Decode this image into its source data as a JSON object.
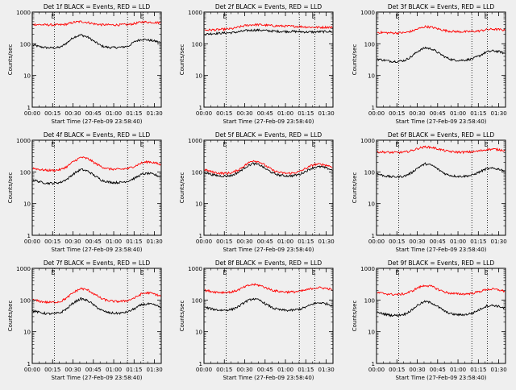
{
  "figure": {
    "background": "#efefef",
    "events_color": "#000000",
    "lld_color": "#ff0000",
    "ylabel": "Counts/sec",
    "xlabel": "Start Time (27-Feb-09 23:58:40)",
    "x_ticklabels": [
      "00:00",
      "00:15",
      "00:30",
      "00:45",
      "01:00",
      "01:15",
      "01:30"
    ],
    "y_ticklabels": [
      "1",
      "10",
      "100",
      "1000"
    ],
    "ylim": [
      1,
      1000
    ],
    "yscale": "log",
    "xlim_minutes_after_start": [
      0,
      95
    ],
    "dotted_marker_minutes": [
      16.3,
      70.2,
      81.7
    ],
    "marker_glyph": "E"
  },
  "chart_data": [
    {
      "type": "line",
      "title": "Det 1f BLACK = Events, RED = LLD",
      "series": [
        {
          "name": "Events",
          "color": "#000000",
          "x": [
            1,
            6,
            11,
            16,
            21,
            26,
            31,
            36,
            41,
            46,
            51,
            56,
            61,
            66,
            71,
            76,
            81,
            86,
            91,
            94
          ],
          "values": [
            90,
            80,
            75,
            74,
            78,
            110,
            165,
            190,
            160,
            115,
            85,
            77,
            76,
            78,
            85,
            120,
            140,
            130,
            120,
            110
          ]
        },
        {
          "name": "LLD",
          "color": "#ff0000",
          "x": [
            1,
            6,
            11,
            16,
            21,
            26,
            31,
            36,
            41,
            46,
            51,
            56,
            61,
            66,
            71,
            76,
            81,
            86,
            91,
            94
          ],
          "values": [
            410,
            400,
            395,
            395,
            395,
            420,
            480,
            500,
            470,
            420,
            400,
            395,
            395,
            400,
            405,
            440,
            490,
            480,
            470,
            460
          ]
        }
      ]
    },
    {
      "type": "line",
      "title": "Det 2f BLACK = Events, RED = LLD",
      "series": [
        {
          "name": "Events",
          "color": "#000000",
          "x": [
            1,
            6,
            11,
            16,
            21,
            26,
            31,
            36,
            41,
            46,
            51,
            56,
            61,
            66,
            71,
            76,
            81,
            86,
            91,
            94
          ],
          "values": [
            200,
            210,
            215,
            220,
            225,
            240,
            260,
            270,
            270,
            260,
            250,
            245,
            245,
            245,
            240,
            235,
            235,
            240,
            245,
            240
          ]
        },
        {
          "name": "LLD",
          "color": "#ff0000",
          "x": [
            1,
            6,
            11,
            16,
            21,
            26,
            31,
            36,
            41,
            46,
            51,
            56,
            61,
            66,
            71,
            76,
            81,
            86,
            91,
            94
          ],
          "values": [
            270,
            275,
            280,
            290,
            300,
            340,
            380,
            400,
            400,
            385,
            370,
            365,
            360,
            355,
            350,
            340,
            330,
            330,
            335,
            330
          ]
        }
      ]
    },
    {
      "type": "line",
      "title": "Det 3f BLACK = Events, RED = LLD",
      "series": [
        {
          "name": "Events",
          "color": "#000000",
          "x": [
            1,
            6,
            11,
            16,
            21,
            26,
            31,
            36,
            41,
            46,
            51,
            56,
            61,
            66,
            71,
            76,
            81,
            86,
            91,
            94
          ],
          "values": [
            33,
            30,
            28,
            28,
            30,
            40,
            60,
            75,
            68,
            50,
            37,
            31,
            30,
            31,
            34,
            42,
            55,
            60,
            56,
            50
          ]
        },
        {
          "name": "LLD",
          "color": "#ff0000",
          "x": [
            1,
            6,
            11,
            16,
            21,
            26,
            31,
            36,
            41,
            46,
            51,
            56,
            61,
            66,
            71,
            76,
            81,
            86,
            91,
            94
          ],
          "values": [
            230,
            225,
            220,
            220,
            225,
            250,
            300,
            350,
            330,
            290,
            260,
            245,
            240,
            240,
            245,
            255,
            280,
            290,
            280,
            270
          ]
        }
      ]
    },
    {
      "type": "line",
      "title": "Det 4f BLACK = Events, RED = LLD",
      "series": [
        {
          "name": "Events",
          "color": "#000000",
          "x": [
            1,
            6,
            11,
            16,
            21,
            26,
            31,
            36,
            41,
            46,
            51,
            56,
            61,
            66,
            71,
            76,
            81,
            86,
            91,
            94
          ],
          "values": [
            55,
            48,
            44,
            44,
            47,
            60,
            90,
            120,
            105,
            75,
            55,
            48,
            46,
            47,
            52,
            65,
            85,
            90,
            80,
            70
          ]
        },
        {
          "name": "LLD",
          "color": "#ff0000",
          "x": [
            1,
            6,
            11,
            16,
            21,
            26,
            31,
            36,
            41,
            46,
            51,
            56,
            61,
            66,
            71,
            76,
            81,
            86,
            91,
            94
          ],
          "values": [
            130,
            118,
            112,
            112,
            118,
            150,
            220,
            290,
            260,
            190,
            145,
            125,
            120,
            122,
            130,
            155,
            195,
            210,
            190,
            170
          ]
        }
      ]
    },
    {
      "type": "line",
      "title": "Det 5f BLACK = Events, RED = LLD",
      "series": [
        {
          "name": "Events",
          "color": "#000000",
          "x": [
            1,
            6,
            11,
            16,
            21,
            26,
            31,
            36,
            41,
            46,
            51,
            56,
            61,
            66,
            71,
            76,
            81,
            86,
            91,
            94
          ],
          "values": [
            95,
            82,
            75,
            74,
            78,
            100,
            145,
            185,
            165,
            120,
            90,
            78,
            75,
            76,
            85,
            110,
            140,
            145,
            130,
            115
          ]
        },
        {
          "name": "LLD",
          "color": "#ff0000",
          "x": [
            1,
            6,
            11,
            16,
            21,
            26,
            31,
            36,
            41,
            46,
            51,
            56,
            61,
            66,
            71,
            76,
            81,
            86,
            91,
            94
          ],
          "values": [
            115,
            100,
            92,
            90,
            95,
            120,
            170,
            230,
            205,
            150,
            110,
            95,
            90,
            92,
            105,
            135,
            170,
            175,
            160,
            145
          ]
        }
      ]
    },
    {
      "type": "line",
      "title": "Det 6f BLACK = Events, RED = LLD",
      "series": [
        {
          "name": "Events",
          "color": "#000000",
          "x": [
            1,
            6,
            11,
            16,
            21,
            26,
            31,
            36,
            41,
            46,
            51,
            56,
            61,
            66,
            71,
            76,
            81,
            86,
            91,
            94
          ],
          "values": [
            85,
            75,
            70,
            70,
            74,
            95,
            140,
            180,
            160,
            115,
            85,
            75,
            72,
            74,
            80,
            100,
            125,
            130,
            120,
            110
          ]
        },
        {
          "name": "LLD",
          "color": "#ff0000",
          "x": [
            1,
            6,
            11,
            16,
            21,
            26,
            31,
            36,
            41,
            46,
            51,
            56,
            61,
            66,
            71,
            76,
            81,
            86,
            91,
            94
          ],
          "values": [
            430,
            420,
            410,
            410,
            420,
            470,
            560,
            620,
            590,
            520,
            460,
            430,
            420,
            420,
            430,
            460,
            510,
            520,
            500,
            480
          ]
        }
      ]
    },
    {
      "type": "line",
      "title": "Det 7f BLACK = Events, RED = LLD",
      "series": [
        {
          "name": "Events",
          "color": "#000000",
          "x": [
            1,
            6,
            11,
            16,
            21,
            26,
            31,
            36,
            41,
            46,
            51,
            56,
            61,
            66,
            71,
            76,
            81,
            86,
            91,
            94
          ],
          "values": [
            45,
            40,
            37,
            37,
            40,
            55,
            85,
            110,
            95,
            65,
            47,
            40,
            38,
            39,
            43,
            55,
            72,
            75,
            68,
            60
          ]
        },
        {
          "name": "LLD",
          "color": "#ff0000",
          "x": [
            1,
            6,
            11,
            16,
            21,
            26,
            31,
            36,
            41,
            46,
            51,
            56,
            61,
            66,
            71,
            76,
            81,
            86,
            91,
            94
          ],
          "values": [
            100,
            90,
            85,
            85,
            90,
            120,
            180,
            230,
            205,
            150,
            110,
            95,
            90,
            91,
            98,
            120,
            160,
            170,
            150,
            135
          ]
        }
      ]
    },
    {
      "type": "line",
      "title": "Det 8f BLACK = Events, RED = LLD",
      "series": [
        {
          "name": "Events",
          "color": "#000000",
          "x": [
            1,
            6,
            11,
            16,
            21,
            26,
            31,
            36,
            41,
            46,
            51,
            56,
            61,
            66,
            71,
            76,
            81,
            86,
            91,
            94
          ],
          "values": [
            58,
            52,
            48,
            48,
            51,
            64,
            90,
            110,
            98,
            72,
            55,
            49,
            47,
            48,
            52,
            62,
            78,
            82,
            75,
            68
          ]
        },
        {
          "name": "LLD",
          "color": "#ff0000",
          "x": [
            1,
            6,
            11,
            16,
            21,
            26,
            31,
            36,
            41,
            46,
            51,
            56,
            61,
            66,
            71,
            76,
            81,
            86,
            91,
            94
          ],
          "values": [
            200,
            185,
            175,
            175,
            180,
            215,
            270,
            310,
            290,
            240,
            200,
            185,
            180,
            180,
            190,
            210,
            240,
            245,
            230,
            215
          ]
        }
      ]
    },
    {
      "type": "line",
      "title": "Det 9f BLACK = Events, RED = LLD",
      "series": [
        {
          "name": "Events",
          "color": "#000000",
          "x": [
            1,
            6,
            11,
            16,
            21,
            26,
            31,
            36,
            41,
            46,
            51,
            56,
            61,
            66,
            71,
            76,
            81,
            86,
            91,
            94
          ],
          "values": [
            40,
            36,
            33,
            33,
            36,
            48,
            72,
            90,
            80,
            58,
            42,
            36,
            34,
            35,
            39,
            50,
            65,
            68,
            62,
            55
          ]
        },
        {
          "name": "LLD",
          "color": "#ff0000",
          "x": [
            1,
            6,
            11,
            16,
            21,
            26,
            31,
            36,
            41,
            46,
            51,
            56,
            61,
            66,
            71,
            76,
            81,
            86,
            91,
            94
          ],
          "values": [
            170,
            160,
            150,
            150,
            158,
            190,
            250,
            290,
            265,
            210,
            175,
            160,
            155,
            156,
            165,
            185,
            215,
            220,
            205,
            190
          ]
        }
      ]
    }
  ]
}
